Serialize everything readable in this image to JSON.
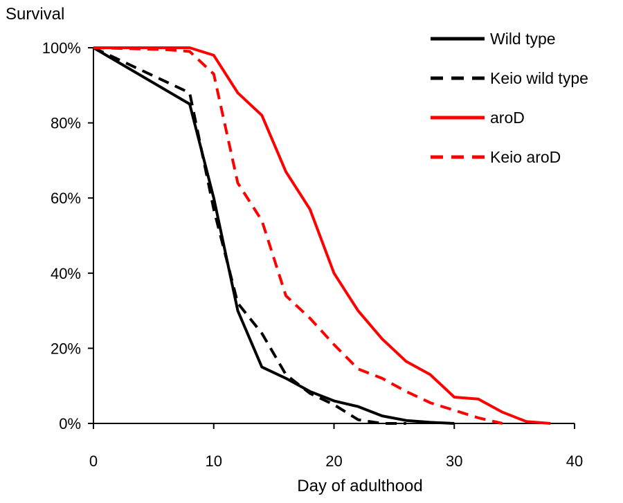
{
  "chart_data": {
    "type": "line",
    "title": "",
    "xlabel": "Day of adulthood",
    "ylabel": "Survival",
    "xlim": [
      0,
      40
    ],
    "ylim": [
      0,
      100
    ],
    "x_ticks": [
      0,
      10,
      20,
      30,
      40
    ],
    "y_ticks": [
      0,
      20,
      40,
      60,
      80,
      100
    ],
    "x_tick_labels": [
      "0",
      "10",
      "20",
      "30",
      "40"
    ],
    "y_tick_labels": [
      "0%",
      "20%",
      "40%",
      "60%",
      "80%",
      "100%"
    ],
    "grid": false,
    "legend_position": "top-right",
    "series": [
      {
        "name": "Wild type",
        "color": "#000000",
        "dashed": false,
        "x": [
          0,
          8,
          10,
          12,
          14,
          16,
          18,
          20,
          22,
          24,
          26,
          28,
          30
        ],
        "y": [
          100,
          85,
          60,
          30,
          15,
          12,
          8.5,
          6,
          4.5,
          2,
          0.8,
          0.3,
          0
        ]
      },
      {
        "name": "Keio wild type",
        "color": "#000000",
        "dashed": true,
        "x": [
          0,
          8,
          10,
          12,
          14,
          16,
          18,
          20,
          22,
          24,
          26
        ],
        "y": [
          100,
          88,
          57,
          32,
          24,
          13,
          8,
          5,
          1,
          0,
          0
        ]
      },
      {
        "name": "aroD",
        "color": "#ff0000",
        "dashed": false,
        "x": [
          0,
          8,
          10,
          12,
          14,
          16,
          18,
          20,
          22,
          24,
          26,
          28,
          30,
          32,
          34,
          36,
          38
        ],
        "y": [
          100,
          100,
          98,
          88,
          82,
          67,
          57,
          40,
          30,
          22.5,
          16.5,
          13,
          7,
          6.5,
          3,
          0.5,
          0
        ]
      },
      {
        "name": "Keio aroD",
        "color": "#ff0000",
        "dashed": true,
        "x": [
          0,
          6,
          8,
          10,
          12,
          14,
          16,
          18,
          20,
          22,
          24,
          26,
          28,
          30,
          32,
          34
        ],
        "y": [
          100,
          99.5,
          99,
          93,
          64,
          54,
          34,
          28,
          21,
          14.5,
          12,
          8.5,
          5.5,
          3.5,
          1.5,
          0
        ]
      }
    ]
  }
}
